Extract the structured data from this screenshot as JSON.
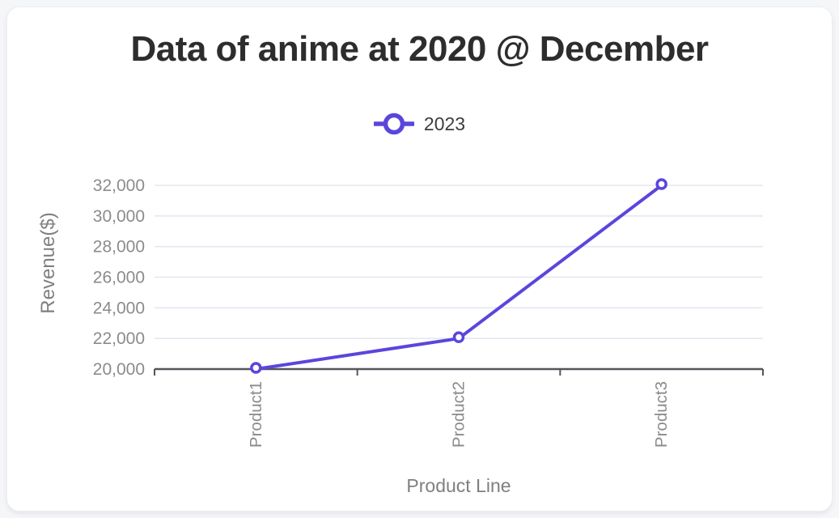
{
  "theme": {
    "page_bg": "#f5f6f8",
    "card_bg": "#ffffff",
    "title_color": "#2d2d2d",
    "legend_text": "#3d3d3d",
    "axis_text": "#8b8b8b",
    "axis_title_color": "#7f7f7f",
    "grid_color": "#e5e7f1",
    "axis_line_color": "#54555a",
    "accent": "#5a46dc"
  },
  "chart_data": {
    "type": "line",
    "title": "Data of anime at 2020 @ December",
    "categories": [
      "Product1",
      "Product2",
      "Product3"
    ],
    "series": [
      {
        "name": "2023",
        "color": "#5a46dc",
        "marker": "open-circle",
        "values": [
          20000,
          22000,
          32000
        ]
      }
    ],
    "xlabel": "Product Line",
    "ylabel": "Revenue($)",
    "ylim": [
      20000,
      32000
    ],
    "ytick_step": 2000,
    "ytick_format": "thousands-comma",
    "grid": true,
    "legend_position": "top-center"
  }
}
